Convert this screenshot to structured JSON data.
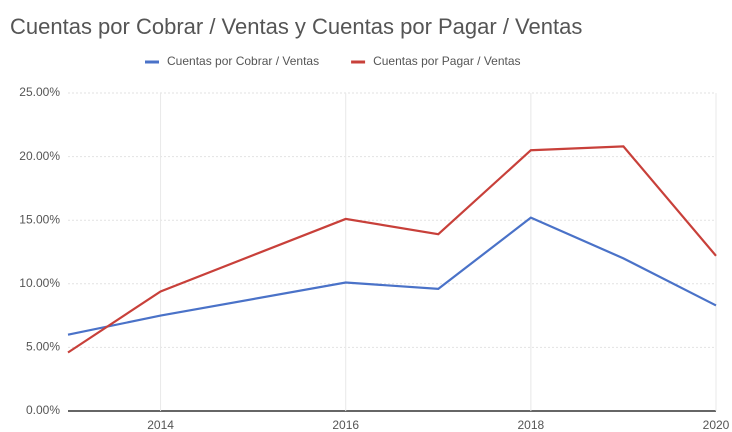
{
  "chart_data": {
    "type": "line",
    "title": "Cuentas por Cobrar / Ventas y Cuentas por Pagar / Ventas",
    "x": [
      2013,
      2014,
      2016,
      2017,
      2018,
      2019,
      2020
    ],
    "series": [
      {
        "name": "Cuentas por Cobrar / Ventas",
        "color": "#4a72c8",
        "values": [
          6.0,
          7.5,
          10.1,
          9.6,
          15.2,
          12.0,
          8.3
        ]
      },
      {
        "name": "Cuentas por Pagar / Ventas",
        "color": "#c8403a",
        "values": [
          4.6,
          9.4,
          15.1,
          13.9,
          20.5,
          20.8,
          12.2
        ]
      }
    ],
    "xlim": [
      2013,
      2020
    ],
    "xticks": [
      2014,
      2016,
      2018,
      2020
    ],
    "ylim": [
      0,
      25
    ],
    "yticks": [
      {
        "value": 0,
        "label": "0.00%"
      },
      {
        "value": 5,
        "label": "5.00%"
      },
      {
        "value": 10,
        "label": "10.00%"
      },
      {
        "value": 15,
        "label": "15.00%"
      },
      {
        "value": 20,
        "label": "20.00%"
      },
      {
        "value": 25,
        "label": "25.00%"
      }
    ],
    "grid": true,
    "legend": "top"
  }
}
